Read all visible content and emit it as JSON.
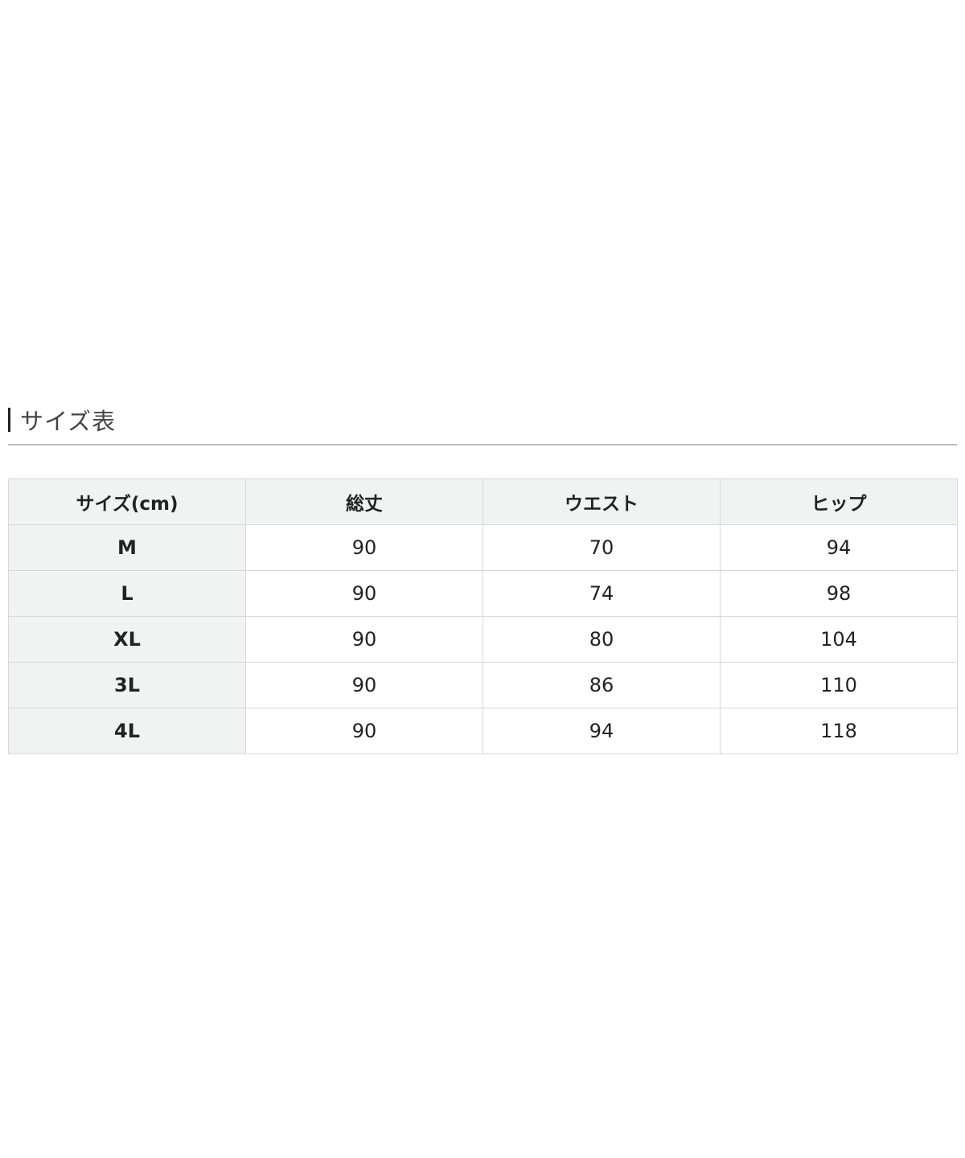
{
  "title": "サイズ表",
  "table": {
    "headers": [
      "サイズ(cm)",
      "総丈",
      "ウエスト",
      "ヒップ"
    ],
    "rows": [
      [
        "M",
        "90",
        "70",
        "94"
      ],
      [
        "L",
        "90",
        "74",
        "98"
      ],
      [
        "XL",
        "90",
        "80",
        "104"
      ],
      [
        "3L",
        "90",
        "86",
        "110"
      ],
      [
        "4L",
        "90",
        "94",
        "118"
      ]
    ]
  }
}
